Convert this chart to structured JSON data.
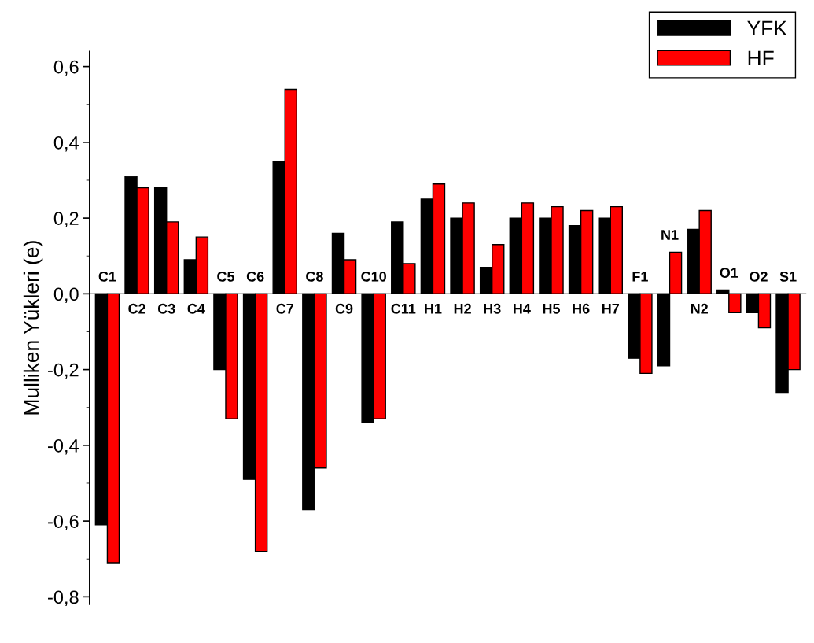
{
  "chart_data": {
    "type": "bar",
    "ylabel": "Mulliken Yükleri (e)",
    "categories": [
      "C1",
      "C2",
      "C3",
      "C4",
      "C5",
      "C6",
      "C7",
      "C8",
      "C9",
      "C10",
      "C11",
      "H1",
      "H2",
      "H3",
      "H4",
      "H5",
      "H6",
      "H7",
      "F1",
      "N1",
      "N2",
      "O1",
      "O2",
      "S1"
    ],
    "series": [
      {
        "name": "YFK",
        "color": "#000000",
        "values": [
          -0.61,
          0.31,
          0.28,
          0.09,
          -0.2,
          -0.49,
          0.35,
          -0.57,
          0.16,
          -0.34,
          0.19,
          0.25,
          0.2,
          0.07,
          0.2,
          0.2,
          0.18,
          0.2,
          -0.17,
          -0.19,
          0.17,
          0.01,
          -0.05,
          -0.26
        ]
      },
      {
        "name": "HF",
        "color": "#ff0000",
        "values": [
          -0.71,
          0.28,
          0.19,
          0.15,
          -0.33,
          -0.68,
          0.54,
          -0.46,
          0.09,
          -0.33,
          0.08,
          0.29,
          0.24,
          0.13,
          0.24,
          0.23,
          0.22,
          0.23,
          -0.21,
          0.11,
          0.22,
          -0.05,
          -0.09,
          -0.2
        ]
      }
    ],
    "ylim": [
      -0.82,
      0.64
    ],
    "yticks": [
      {
        "value": -0.8,
        "label": "-0,8"
      },
      {
        "value": -0.6,
        "label": "-0,6"
      },
      {
        "value": -0.4,
        "label": "-0,4"
      },
      {
        "value": -0.2,
        "label": "-0,2"
      },
      {
        "value": 0.0,
        "label": "0,0"
      },
      {
        "value": 0.2,
        "label": "0,2"
      },
      {
        "value": 0.4,
        "label": "0,4"
      },
      {
        "value": 0.6,
        "label": "0,6"
      }
    ],
    "grid": false,
    "legend": "top right"
  }
}
